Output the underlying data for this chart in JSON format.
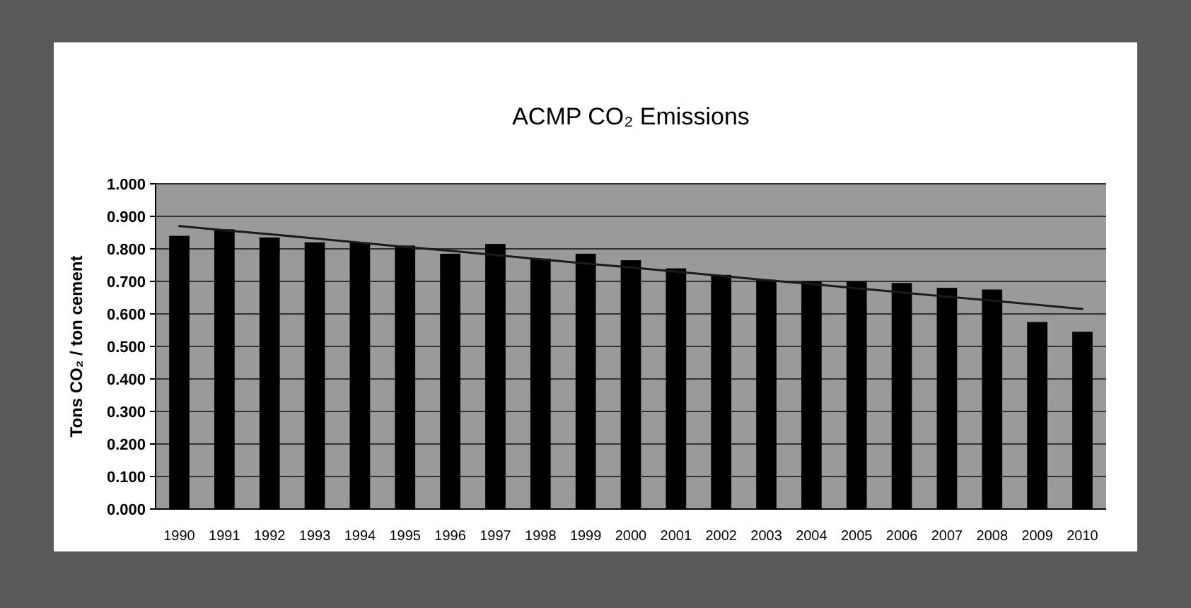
{
  "chart_data": {
    "type": "bar",
    "title": "ACMP CO₂ Emissions",
    "ylabel": "Tons CO₂ / ton cement",
    "categories": [
      "1990",
      "1991",
      "1992",
      "1993",
      "1994",
      "1995",
      "1996",
      "1997",
      "1998",
      "1999",
      "2000",
      "2001",
      "2002",
      "2003",
      "2004",
      "2005",
      "2006",
      "2007",
      "2008",
      "2009",
      "2010"
    ],
    "series": [
      {
        "color": "#000000",
        "values": [
          0.84,
          0.86,
          0.835,
          0.82,
          0.82,
          0.81,
          0.785,
          0.815,
          0.77,
          0.785,
          0.765,
          0.74,
          0.72,
          0.705,
          0.7,
          0.7,
          0.695,
          0.68,
          0.675,
          0.575,
          0.545
        ]
      },
      {
        "type": "line",
        "color": "#1a1a1a",
        "values": [
          0.87,
          0.857,
          0.845,
          0.832,
          0.819,
          0.806,
          0.794,
          0.781,
          0.768,
          0.755,
          0.743,
          0.73,
          0.717,
          0.704,
          0.692,
          0.679,
          0.666,
          0.653,
          0.641,
          0.628,
          0.615
        ]
      }
    ],
    "ylim": [
      0,
      1
    ],
    "yticks": [
      {
        "value": 0,
        "label": "0.000"
      },
      {
        "value": 0.1,
        "label": "0.100"
      },
      {
        "value": 0.2,
        "label": "0.200"
      },
      {
        "value": 0.3,
        "label": "0.300"
      },
      {
        "value": 0.4,
        "label": "0.400"
      },
      {
        "value": 0.5,
        "label": "0.500"
      },
      {
        "value": 0.6,
        "label": "0.600"
      },
      {
        "value": 0.7,
        "label": "0.700"
      },
      {
        "value": 0.8,
        "label": "0.800"
      },
      {
        "value": 0.9,
        "label": "0.900"
      },
      {
        "value": 1,
        "label": "1.000"
      }
    ],
    "grid": "y"
  }
}
